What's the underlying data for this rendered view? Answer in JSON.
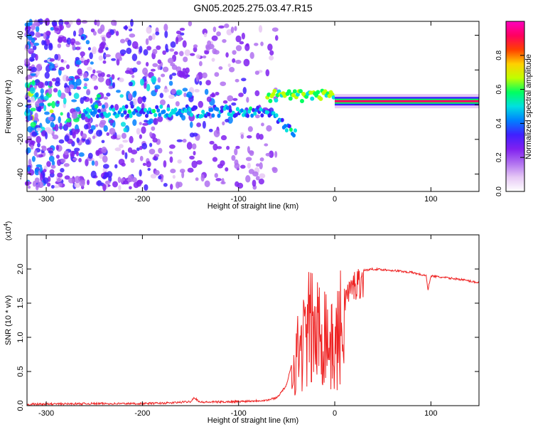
{
  "title": "GN05.2025.275.03.47.R15",
  "chart_data": [
    {
      "type": "heatmap",
      "xlabel": "Height of straight line (km)",
      "ylabel": "Frequency (Hz)",
      "xlim": [
        -320,
        150
      ],
      "ylim": [
        -50,
        48
      ],
      "x_ticks": [
        -300,
        -200,
        -100,
        0,
        100
      ],
      "y_ticks": [
        -40,
        -20,
        0,
        20,
        40
      ],
      "colorbar": {
        "label": "Normalized spectral amplitude",
        "range": [
          0,
          1
        ],
        "ticks": [
          0.0,
          0.2,
          0.4,
          0.6,
          0.8
        ],
        "colormap": [
          "#ffffff",
          "#e6c8f5",
          "#b070f0",
          "#8020f0",
          "#4020ff",
          "#0080ff",
          "#00e0e0",
          "#00ff60",
          "#c0ff00",
          "#ffd000",
          "#ff4000",
          "#ff0060",
          "#ff00c0"
        ]
      },
      "features": [
        {
          "x": [
            -320,
            -60
          ],
          "freq_spread_hz": 48,
          "amplitude": "low, scattered noise"
        },
        {
          "x": [
            -260,
            -40
          ],
          "freq_center_hz": -4,
          "amplitude": 0.3,
          "note": "band descending to about -15 Hz near -45 km"
        },
        {
          "x": [
            -70,
            0
          ],
          "freq_center_hz": 5,
          "amplitude": 0.5
        },
        {
          "x": [
            0,
            150
          ],
          "freq_center_hz": 2,
          "amplitude": 0.95,
          "note": "strong carrier tone"
        }
      ]
    },
    {
      "type": "line",
      "xlabel": "Height of straight line (km)",
      "ylabel": "SNR (10 * v/v)",
      "y_multiplier": "(x10^4)",
      "multiplier_base": "(x10",
      "multiplier_exp": "4",
      "multiplier_close": ")",
      "xlim": [
        -320,
        150
      ],
      "ylim": [
        0,
        2.5
      ],
      "x_ticks": [
        -300,
        -200,
        -100,
        0,
        100
      ],
      "y_ticks": [
        "0.0",
        "0.5",
        "1.0",
        "1.5",
        "2.0"
      ],
      "color": "#ee2222",
      "series": [
        {
          "x": [
            -320,
            -250,
            -200,
            -170,
            -150,
            -146,
            -140,
            -100,
            -70,
            -60,
            -50,
            -45,
            -40,
            -35,
            -30,
            -25,
            -20,
            -15,
            -10,
            -5,
            0,
            5,
            10,
            15,
            20,
            25,
            30,
            40,
            60,
            80,
            95,
            97,
            100,
            110,
            130,
            150
          ],
          "y": [
            0.02,
            0.03,
            0.03,
            0.04,
            0.06,
            0.12,
            0.05,
            0.06,
            0.08,
            0.12,
            0.3,
            0.6,
            1.0,
            1.2,
            1.4,
            1.6,
            1.4,
            1.5,
            1.6,
            1.2,
            1.1,
            1.5,
            1.7,
            1.8,
            1.9,
            1.95,
            1.98,
            2.0,
            1.98,
            1.95,
            1.9,
            1.7,
            1.9,
            1.88,
            1.85,
            1.8
          ]
        }
      ]
    }
  ]
}
